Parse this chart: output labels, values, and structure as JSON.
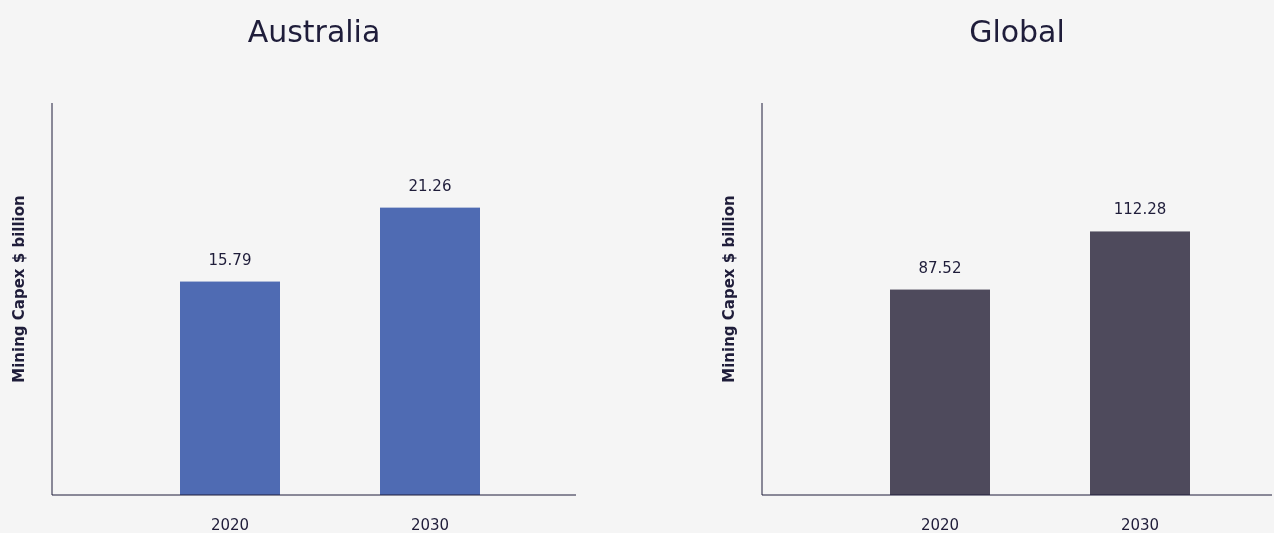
{
  "chart_data": [
    {
      "type": "bar",
      "title": "Australia",
      "ylabel": "Mining Capex $ billion",
      "categories": [
        "2020",
        "2030"
      ],
      "values": [
        15.79,
        21.26
      ],
      "color": "#4f6bb3",
      "ylim": [
        0,
        29
      ],
      "data_labels": true,
      "tick_labels": "x"
    },
    {
      "type": "bar",
      "title": "Global",
      "ylabel": "Mining Capex $ billion",
      "categories": [
        "2020",
        "2030"
      ],
      "values": [
        87.52,
        112.28
      ],
      "color": "#4e4a5c",
      "ylim": [
        0,
        167
      ],
      "data_labels": true,
      "tick_labels": "x"
    }
  ]
}
